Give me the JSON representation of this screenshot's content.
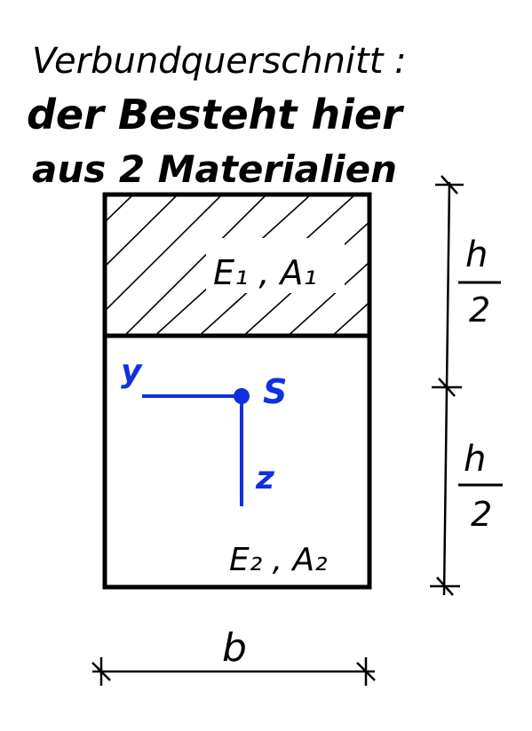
{
  "title": {
    "line1": "Verbundquerschnitt :",
    "line2": "der Besteht hier",
    "line3": "aus 2 Materialien"
  },
  "sections": {
    "top_label": "E₁ , A₁",
    "bottom_label": "E₂ , A₂"
  },
  "axes": {
    "y_label": "y",
    "z_label": "z",
    "centroid_label": "S",
    "color": "#1030e0"
  },
  "dimensions": {
    "height_half_top_num": "h",
    "height_half_top_den": "2",
    "height_half_bottom_num": "h",
    "height_half_bottom_den": "2",
    "width_label": "b"
  },
  "colors": {
    "ink": "#000000"
  }
}
